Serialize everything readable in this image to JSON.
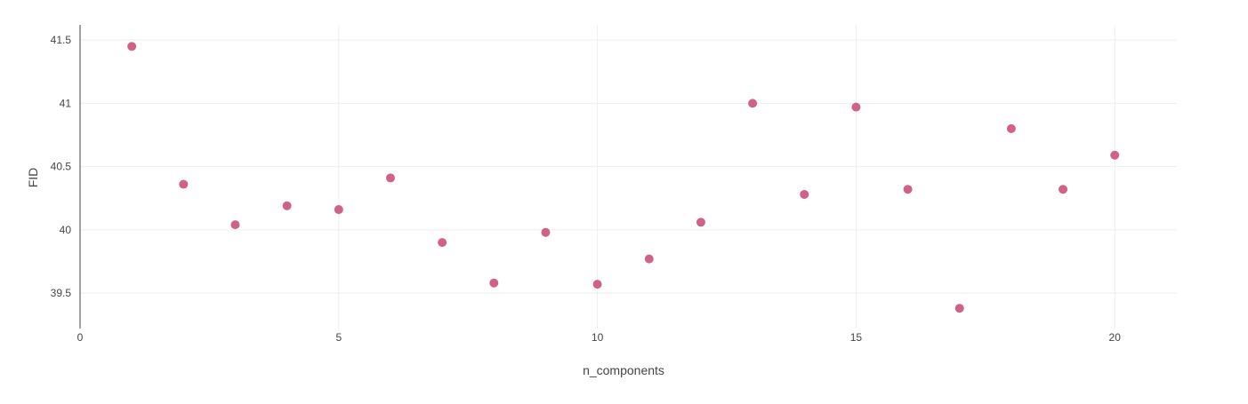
{
  "chart_data": {
    "type": "scatter",
    "title": "",
    "xlabel": "n_components",
    "ylabel": "FID",
    "xlim": [
      0,
      21.2
    ],
    "ylim": [
      39.22,
      41.62
    ],
    "xticks": [
      0,
      5,
      10,
      15,
      20
    ],
    "xtick_labels": [
      "0",
      "5",
      "10",
      "15",
      "20"
    ],
    "yticks": [
      39.5,
      40,
      40.5,
      41,
      41.5
    ],
    "ytick_labels": [
      "39.5",
      "40",
      "40.5",
      "41",
      "41.5"
    ],
    "grid": true,
    "legend": "none",
    "marker_color": "#d0628a",
    "series": [
      {
        "x": [
          1,
          2,
          3,
          4,
          5,
          6,
          7,
          8,
          9,
          10,
          11,
          12,
          13,
          14,
          15,
          16,
          17,
          18,
          19,
          20
        ],
        "y": [
          41.45,
          40.36,
          40.04,
          40.19,
          40.16,
          40.41,
          39.9,
          39.58,
          39.98,
          39.57,
          39.77,
          40.06,
          41.0,
          40.28,
          40.97,
          40.32,
          39.38,
          40.8,
          40.32,
          40.59
        ]
      }
    ]
  }
}
